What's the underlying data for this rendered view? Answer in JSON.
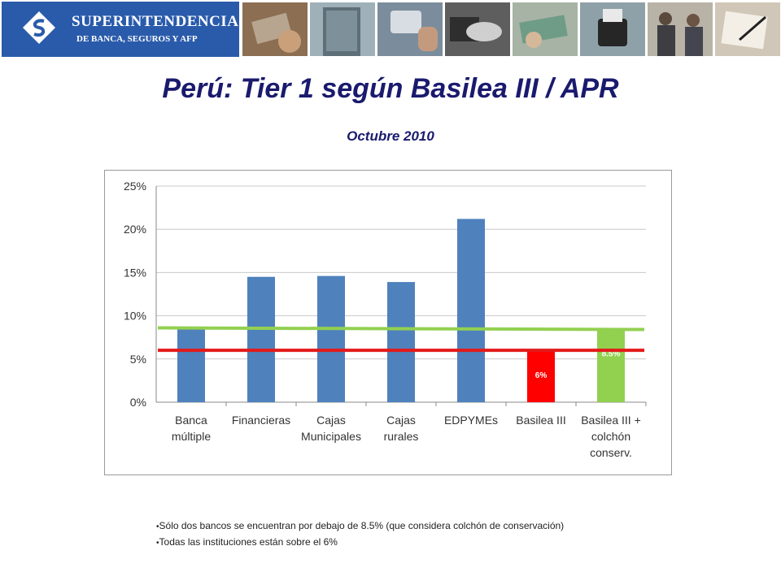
{
  "header": {
    "logo_line1": "SUPERINTENDENCIA",
    "logo_line2": "DE BANCA, SEGUROS Y AFP",
    "photos": [
      "card-photo",
      "building-photo",
      "keyboard-photo",
      "handshake-photo",
      "money-photo",
      "card-terminal-photo",
      "meeting-photo",
      "signing-photo"
    ]
  },
  "title": "Perú: Tier 1 según Basilea III / APR",
  "subtitle": "Octubre 2010",
  "chart_data": {
    "type": "bar",
    "categories": [
      [
        "Banca",
        "múltiple"
      ],
      [
        "Financieras"
      ],
      [
        "Cajas",
        "Municipales"
      ],
      [
        "Cajas",
        "rurales"
      ],
      [
        "EDPYMEs"
      ],
      [
        "Basilea III"
      ],
      [
        "Basilea III +",
        "colchón",
        "conserv."
      ]
    ],
    "values": [
      8.7,
      14.5,
      14.6,
      13.9,
      21.2,
      6.0,
      8.5
    ],
    "bar_colors": [
      "#4f81bd",
      "#4f81bd",
      "#4f81bd",
      "#4f81bd",
      "#4f81bd",
      "#ff0000",
      "#92d050"
    ],
    "data_labels": [
      "",
      "",
      "",
      "",
      "",
      "6%",
      "8.5%"
    ],
    "reference_lines": [
      {
        "value": 8.5,
        "color": "#92d050"
      },
      {
        "value": 6.0,
        "color": "#e31a1a"
      }
    ],
    "ylim": [
      0,
      25
    ],
    "yticks": [
      "0%",
      "5%",
      "10%",
      "15%",
      "20%",
      "25%"
    ],
    "grid": true,
    "legend": "none"
  },
  "notes": [
    "Sólo dos bancos se encuentran por debajo de 8.5% (que considera colchón de conservación)",
    "Todas las instituciones están sobre el 6%"
  ]
}
